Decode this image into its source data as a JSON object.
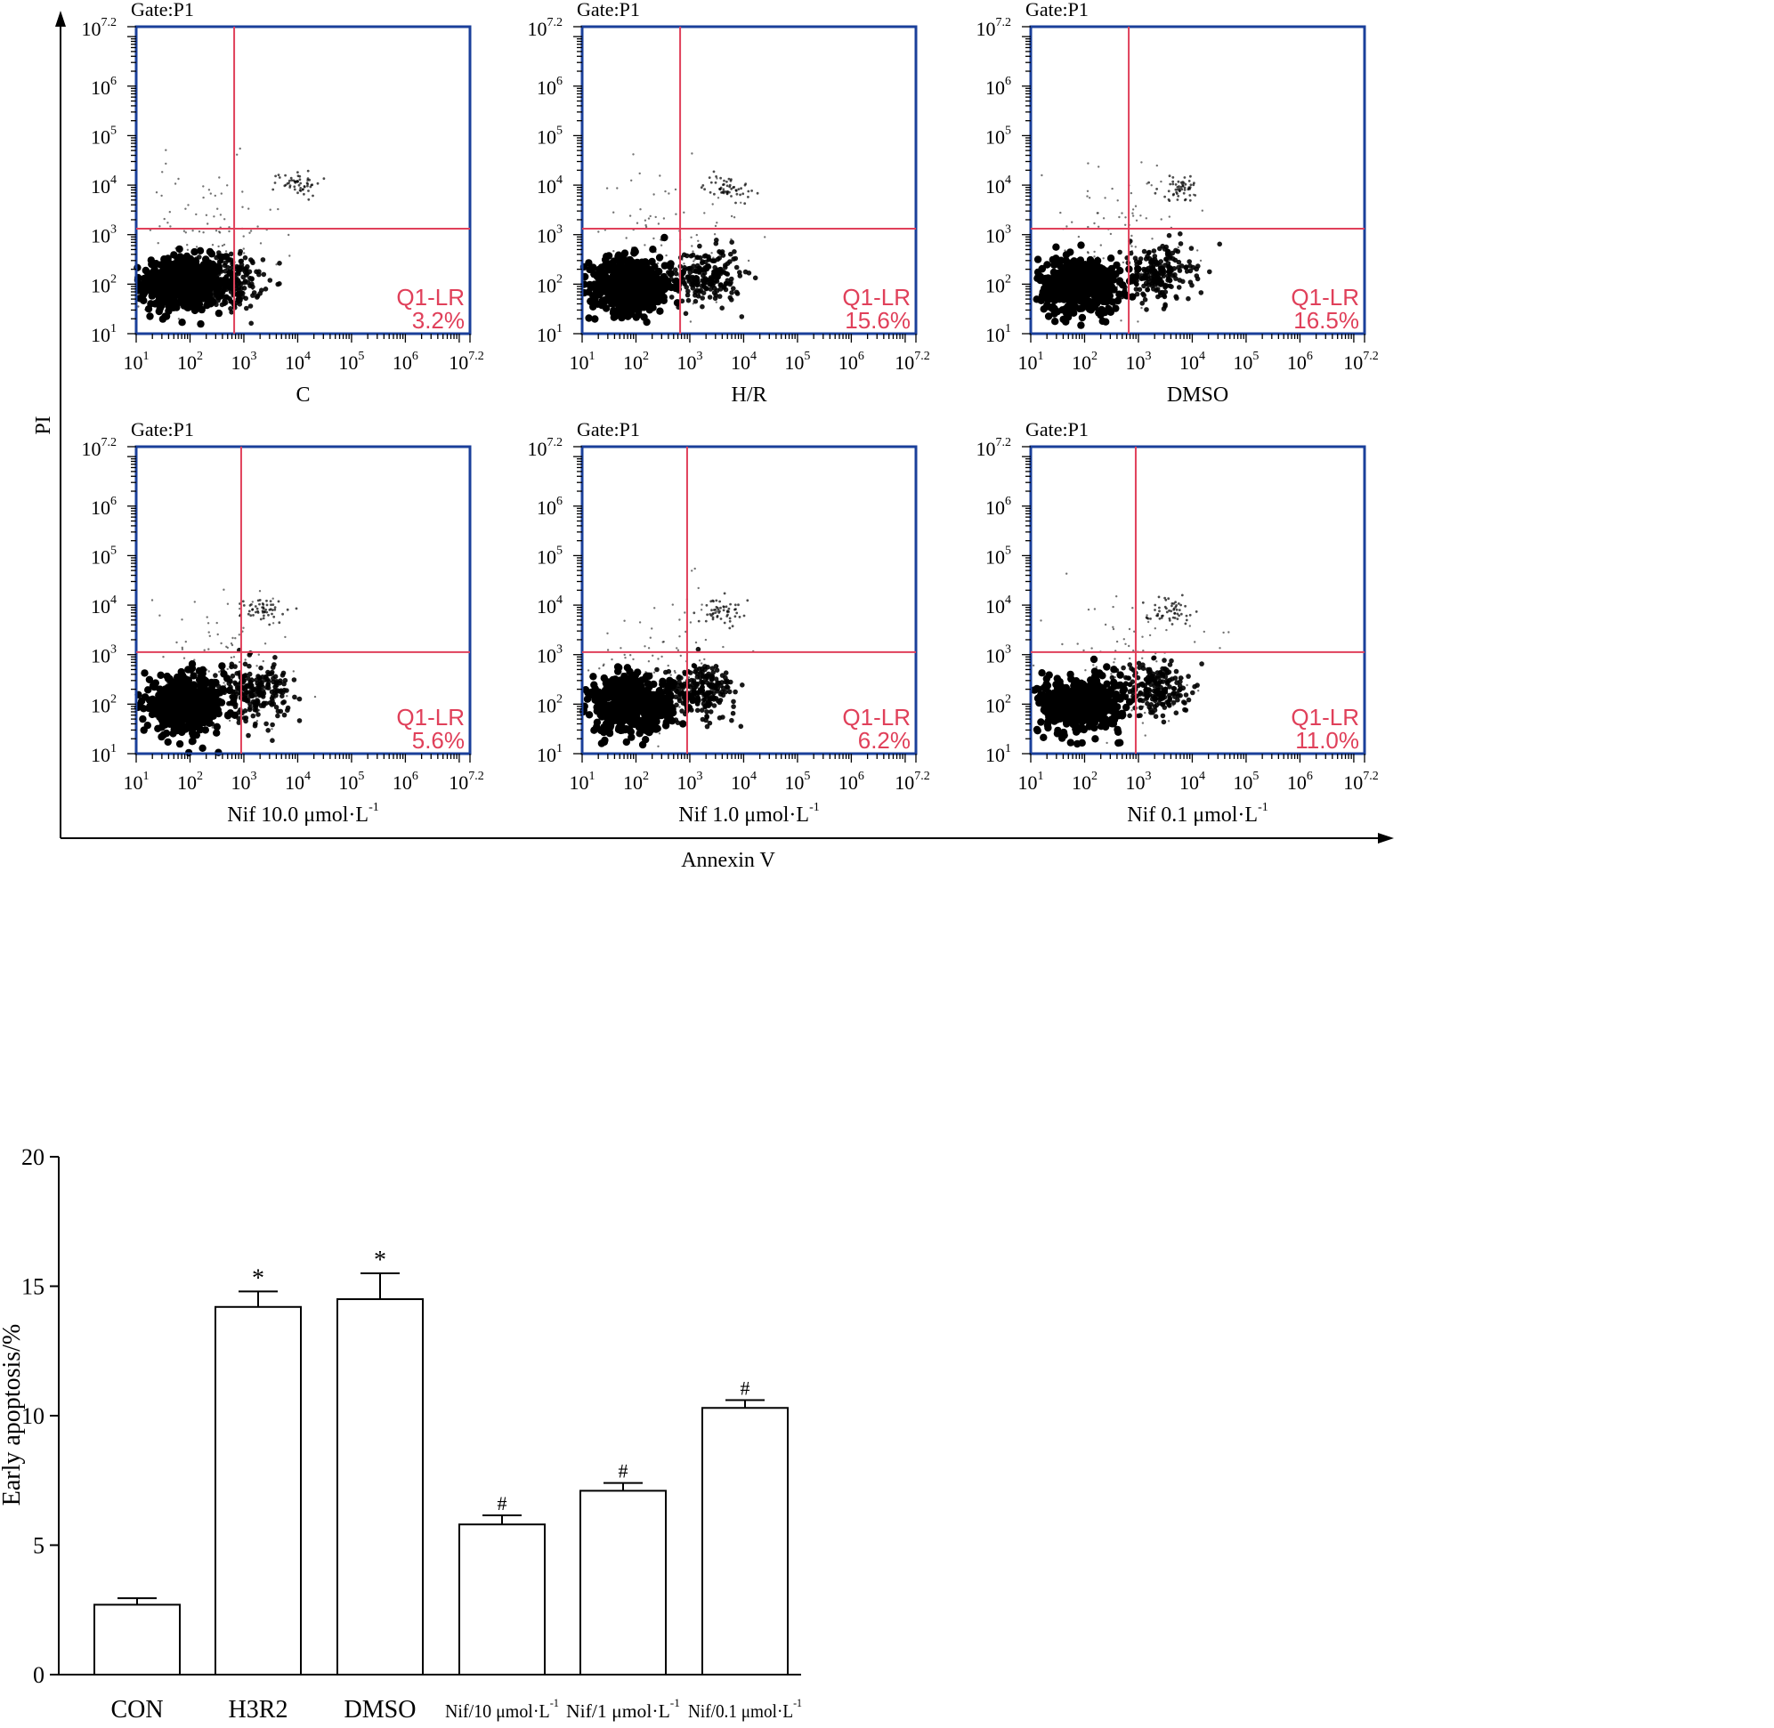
{
  "chart_data": [
    {
      "type": "scatter",
      "id": "flow-grid",
      "y_axis_label": "PI",
      "x_axis_label": "Annexin V",
      "axis_tick_labels": [
        {
          "base": "10",
          "exp": "1"
        },
        {
          "base": "10",
          "exp": "2"
        },
        {
          "base": "10",
          "exp": "3"
        },
        {
          "base": "10",
          "exp": "4"
        },
        {
          "base": "10",
          "exp": "5"
        },
        {
          "base": "10",
          "exp": "6"
        },
        {
          "base": "10",
          "exp": "7.2"
        }
      ],
      "axis_range_log10": [
        1,
        7.2
      ],
      "quadrant_label": "Q1-LR",
      "panels": [
        {
          "gate": "Gate:P1",
          "caption": "C",
          "caption_unit": "",
          "caption_sup": "",
          "lr_percent": "3.2%",
          "x_gate_log10": 2.82,
          "y_gate_log10": 3.12,
          "main_center_log10": [
            1.85,
            2.0
          ],
          "lr_center_log10": [
            2.7,
            2.05
          ],
          "ur_center_log10": [
            4.0,
            4.05
          ]
        },
        {
          "gate": "Gate:P1",
          "caption": "H/R",
          "caption_unit": "",
          "caption_sup": "",
          "lr_percent": "15.6%",
          "x_gate_log10": 2.82,
          "y_gate_log10": 3.12,
          "main_center_log10": [
            1.9,
            1.98
          ],
          "lr_center_log10": [
            3.3,
            2.15
          ],
          "ur_center_log10": [
            3.7,
            3.95
          ]
        },
        {
          "gate": "Gate:P1",
          "caption": "DMSO",
          "caption_unit": "",
          "caption_sup": "",
          "lr_percent": "16.5%",
          "x_gate_log10": 2.82,
          "y_gate_log10": 3.12,
          "main_center_log10": [
            1.9,
            1.98
          ],
          "lr_center_log10": [
            3.35,
            2.2
          ],
          "ur_center_log10": [
            3.8,
            3.95
          ]
        },
        {
          "gate": "Gate:P1",
          "caption": "Nif 10.0 ",
          "caption_unit": "μmol·L",
          "caption_sup": "-1",
          "lr_percent": "5.6%",
          "x_gate_log10": 2.95,
          "y_gate_log10": 3.05,
          "main_center_log10": [
            1.9,
            1.98
          ],
          "lr_center_log10": [
            3.2,
            2.25
          ],
          "ur_center_log10": [
            3.4,
            3.9
          ]
        },
        {
          "gate": "Gate:P1",
          "caption": "Nif 1.0 ",
          "caption_unit": "μmol·L",
          "caption_sup": "-1",
          "lr_percent": "6.2%",
          "x_gate_log10": 2.95,
          "y_gate_log10": 3.05,
          "main_center_log10": [
            1.9,
            1.98
          ],
          "lr_center_log10": [
            3.2,
            2.25
          ],
          "ur_center_log10": [
            3.6,
            3.9
          ]
        },
        {
          "gate": "Gate:P1",
          "caption": "Nif 0.1 ",
          "caption_unit": "μmol·L",
          "caption_sup": "-1",
          "lr_percent": "11.0%",
          "x_gate_log10": 2.95,
          "y_gate_log10": 3.05,
          "main_center_log10": [
            1.9,
            1.98
          ],
          "lr_center_log10": [
            3.3,
            2.3
          ],
          "ur_center_log10": [
            3.55,
            3.9
          ]
        }
      ]
    },
    {
      "type": "bar",
      "id": "early-apoptosis",
      "ylabel": "Early apoptosis/%",
      "ylim": [
        0,
        20
      ],
      "yticks": [
        "0",
        "5",
        "10",
        "15",
        "20"
      ],
      "categories": [
        {
          "label": "CON",
          "unit": "",
          "sup": ""
        },
        {
          "label": "H3R2",
          "unit": "",
          "sup": ""
        },
        {
          "label": "DMSO",
          "unit": "",
          "sup": ""
        },
        {
          "label": "Nif/10 ",
          "unit": "μmol·L",
          "sup": "-1"
        },
        {
          "label": "Nif/1 ",
          "unit": "μmol·L",
          "sup": "-1"
        },
        {
          "label": "Nif/0.1 ",
          "unit": "μmol·L",
          "sup": "-1"
        }
      ],
      "values": [
        2.7,
        14.2,
        14.5,
        5.8,
        7.1,
        10.3
      ],
      "errors": [
        0.25,
        0.6,
        1.0,
        0.35,
        0.3,
        0.3
      ],
      "significance": [
        "",
        "*",
        "*",
        "#",
        "#",
        "#"
      ]
    }
  ],
  "colors": {
    "quadrant": "#e0405a",
    "frame": "#1a3f9a",
    "dots": "#000000",
    "bar_fill": "#ffffff",
    "ink": "#000000"
  }
}
